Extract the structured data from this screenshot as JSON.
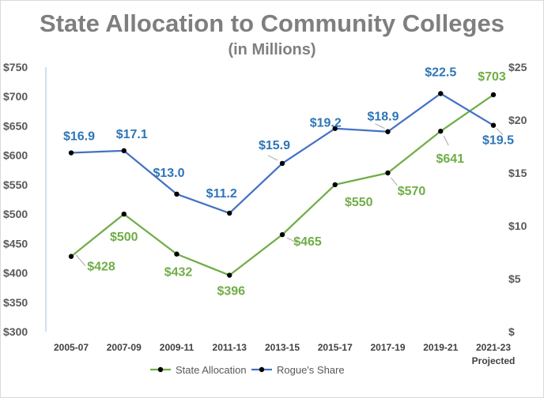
{
  "chart_data": {
    "type": "line",
    "title": "State Allocation to Community Colleges",
    "subtitle": "(in Millions)",
    "categories": [
      "2005-07",
      "2007-09",
      "2009-11",
      "2011-13",
      "2013-15",
      "2015-17",
      "2017-19",
      "2019-21",
      "2021-23"
    ],
    "category_sublabels": [
      "",
      "",
      "",
      "",
      "",
      "",
      "",
      "",
      "Projected"
    ],
    "left_axis": {
      "min": 300,
      "max": 750,
      "step": 50,
      "ticks": [
        "$300",
        "$350",
        "$400",
        "$450",
        "$500",
        "$550",
        "$600",
        "$650",
        "$700",
        "$750"
      ]
    },
    "right_axis": {
      "min": 0,
      "max": 25,
      "step": 5,
      "ticks": [
        "$",
        "$5",
        "$10",
        "$15",
        "$20",
        "$25"
      ]
    },
    "series": [
      {
        "name": "State Allocation",
        "axis": "left",
        "color": "#70ad47",
        "label_color": "#70ad47",
        "values": [
          428,
          500,
          432,
          396,
          465,
          550,
          570,
          641,
          703
        ],
        "labels": [
          "$428",
          "$500",
          "$432",
          "$396",
          "$465",
          "$550",
          "$570",
          "$641",
          "$703"
        ]
      },
      {
        "name": "Rogue's Share",
        "axis": "right",
        "color": "#4472c4",
        "label_color": "#2e75b6",
        "values": [
          16.9,
          17.1,
          13.0,
          11.2,
          15.9,
          19.2,
          18.9,
          22.5,
          19.5
        ],
        "labels": [
          "$16.9",
          "$17.1",
          "$13.0",
          "$11.2",
          "$15.9",
          "$19.2",
          "$18.9",
          "$22.5",
          "$19.5"
        ]
      }
    ],
    "legend_position": "bottom",
    "grid": false
  }
}
